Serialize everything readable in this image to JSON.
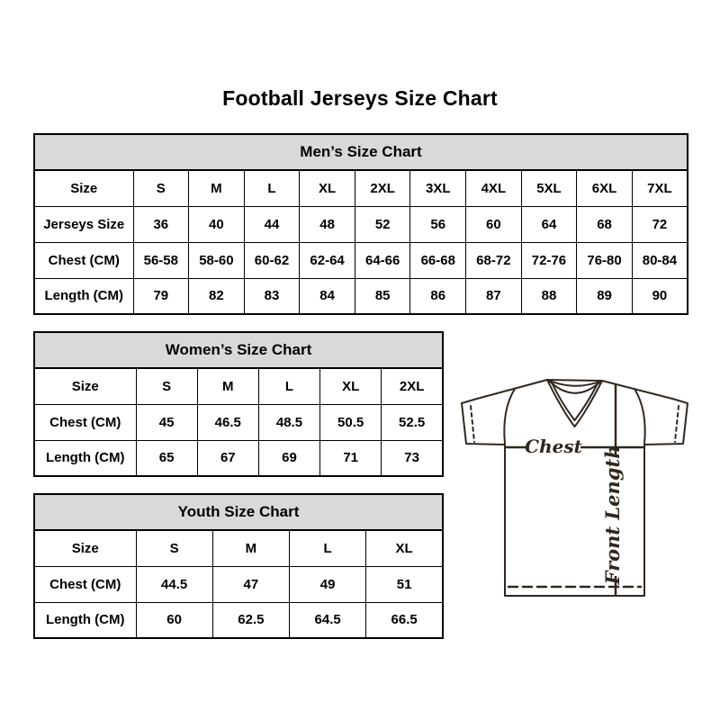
{
  "page": {
    "title": "Football Jerseys Size Chart"
  },
  "tables": {
    "men": {
      "header": "Men’s Size Chart",
      "rows": [
        {
          "label": "Size",
          "values": [
            "S",
            "M",
            "L",
            "XL",
            "2XL",
            "3XL",
            "4XL",
            "5XL",
            "6XL",
            "7XL"
          ]
        },
        {
          "label": "Jerseys Size",
          "values": [
            "36",
            "40",
            "44",
            "48",
            "52",
            "56",
            "60",
            "64",
            "68",
            "72"
          ]
        },
        {
          "label": "Chest (CM)",
          "values": [
            "56-58",
            "58-60",
            "60-62",
            "62-64",
            "64-66",
            "66-68",
            "68-72",
            "72-76",
            "76-80",
            "80-84"
          ]
        },
        {
          "label": "Length (CM)",
          "values": [
            "79",
            "82",
            "83",
            "84",
            "85",
            "86",
            "87",
            "88",
            "89",
            "90"
          ]
        }
      ]
    },
    "women": {
      "header": "Women’s Size Chart",
      "rows": [
        {
          "label": "Size",
          "values": [
            "S",
            "M",
            "L",
            "XL",
            "2XL"
          ]
        },
        {
          "label": "Chest (CM)",
          "values": [
            "45",
            "46.5",
            "48.5",
            "50.5",
            "52.5"
          ]
        },
        {
          "label": "Length (CM)",
          "values": [
            "65",
            "67",
            "69",
            "71",
            "73"
          ]
        }
      ]
    },
    "youth": {
      "header": "Youth Size Chart",
      "rows": [
        {
          "label": "Size",
          "values": [
            "S",
            "M",
            "L",
            "XL"
          ]
        },
        {
          "label": "Chest (CM)",
          "values": [
            "44.5",
            "47",
            "49",
            "51"
          ]
        },
        {
          "label": "Length (CM)",
          "values": [
            "60",
            "62.5",
            "64.5",
            "66.5"
          ]
        }
      ]
    }
  },
  "diagram": {
    "chest_label": "Chest",
    "front_length_label": "Front Length"
  },
  "colors": {
    "background": "#ffffff",
    "table_header_bg": "#d9d9d9",
    "table_border": "#000000",
    "text": "#000000",
    "diagram_line": "#302820"
  }
}
